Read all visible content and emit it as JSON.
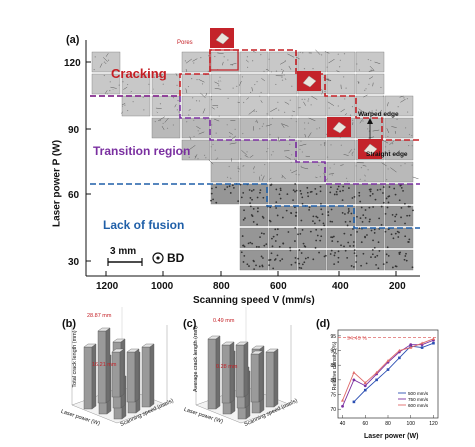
{
  "panel_a": {
    "letter": "(a)",
    "y_axis_title": "Laser power P (W)",
    "x_axis_title": "Scanning speed V (mm/s)",
    "y_ticks": [
      "120",
      "90",
      "60",
      "30"
    ],
    "x_ticks": [
      "1200",
      "1000",
      "800",
      "600",
      "400",
      "200"
    ],
    "regions": {
      "cracking": "Cracking",
      "transition": "Transition  region",
      "lack": "Lack of fusion"
    },
    "annotations": {
      "pores": "Pores",
      "warped": "Warped edge",
      "straight": "Straight edge"
    },
    "scale": "3 mm",
    "direction": "BD",
    "colors": {
      "cracking": "#c41e24",
      "transition": "#7a2fa0",
      "lack": "#1f5fa8"
    }
  },
  "panel_b": {
    "letter": "(b)",
    "z_label": "Total crack length (mm)",
    "x_label": "Laser power (W)",
    "y_label": "Scanning speed (mm/s)",
    "max_label": "28.87 mm",
    "min_label": "16.21 mm"
  },
  "panel_c": {
    "letter": "(c)",
    "z_label": "Average crack length  (mm)",
    "x_label": "Laser power (W)",
    "y_label": "Scanning speed (mm/s)",
    "max_label": "0.49 mm",
    "min_label": "0.28 mm"
  },
  "chart_data": {
    "type": "line",
    "letter": "(d)",
    "xlabel": "Laser power (W)",
    "ylabel": "Relative density (%)",
    "x": [
      40,
      50,
      60,
      70,
      80,
      90,
      100,
      110,
      120
    ],
    "xticks": [
      "40",
      "60",
      "80",
      "100",
      "120"
    ],
    "yticks": [
      "70",
      "75",
      "80",
      "85",
      "90",
      "95"
    ],
    "ylim": [
      67,
      97
    ],
    "xlim": [
      36,
      124
    ],
    "reference": {
      "value": 94.49,
      "label": "94.49 %"
    },
    "series": [
      {
        "name": "500 mm/s",
        "color": "#2b4fb3",
        "values": [
          null,
          72.5,
          76.5,
          80,
          83.5,
          87.5,
          91.5,
          91,
          92.5
        ]
      },
      {
        "name": "750 mm/s",
        "color": "#7a2fa0",
        "values": [
          71,
          80,
          78,
          82,
          86,
          89.5,
          92,
          92,
          93.5
        ]
      },
      {
        "name": "600 mm/s",
        "color": "#e06a6a",
        "values": [
          73,
          82.5,
          79,
          82.5,
          86.5,
          90,
          91,
          92.5,
          94
        ]
      }
    ],
    "legend": "bottom-right"
  }
}
